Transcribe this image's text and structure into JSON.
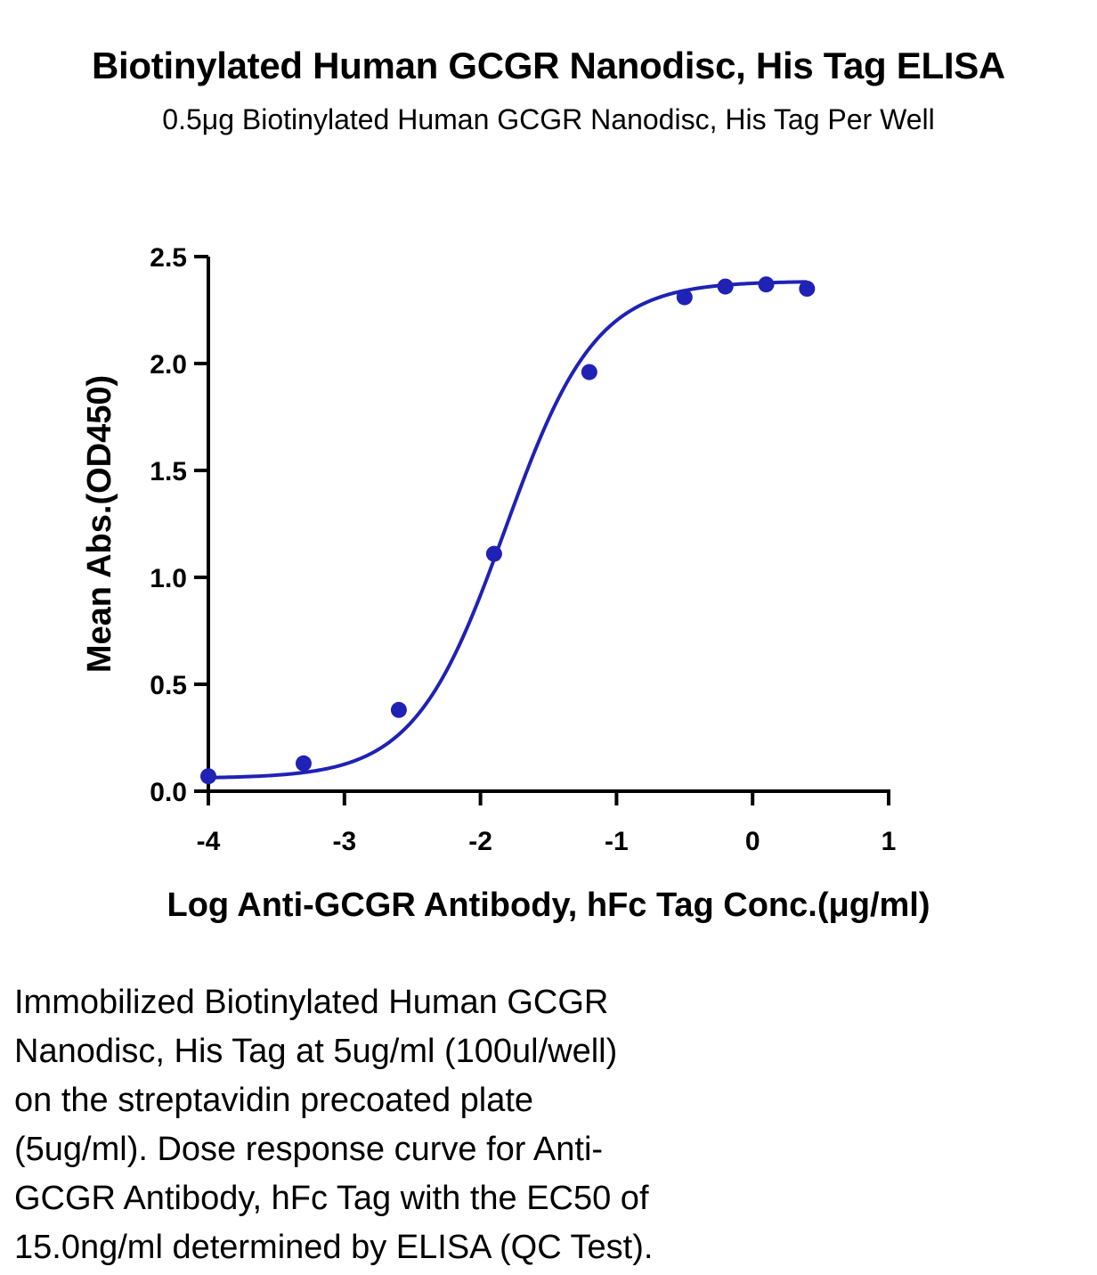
{
  "chart_data": {
    "type": "scatter",
    "title": "Biotinylated Human GCGR Nanodisc, His Tag ELISA",
    "subtitle": "0.5μg Biotinylated Human GCGR Nanodisc, His Tag Per Well",
    "xlabel": "Log Anti-GCGR Antibody, hFc Tag Conc.(μg/ml)",
    "ylabel": "Mean Abs.(OD450)",
    "xlim": [
      -4,
      1
    ],
    "ylim": [
      0,
      2.5
    ],
    "xticks": [
      "-4",
      "-3",
      "-2",
      "-1",
      "0",
      "1"
    ],
    "yticks": [
      "0.0",
      "0.5",
      "1.0",
      "1.5",
      "2.0",
      "2.5"
    ],
    "series": [
      {
        "x": [
          -4.0,
          -3.3,
          -2.6,
          -1.9,
          -1.2,
          -0.5,
          -0.2,
          0.1,
          0.4
        ],
        "y": [
          0.07,
          0.13,
          0.38,
          1.11,
          1.96,
          2.31,
          2.36,
          2.37,
          2.35
        ]
      }
    ],
    "fit": {
      "type": "4PL sigmoid",
      "bottom": 0.06,
      "top": 2.385,
      "log_ec50": -1.82,
      "hill": 1.3
    },
    "color": "#1f22b4",
    "grid": false,
    "legend": "none"
  },
  "caption": {
    "lines": [
      "Immobilized Biotinylated Human GCGR",
      "Nanodisc, His Tag at 5ug/ml (100ul/well)",
      "on the streptavidin precoated plate",
      "(5ug/ml). Dose response curve for Anti-",
      "GCGR Antibody, hFc Tag with the EC50 of",
      "15.0ng/ml determined by ELISA (QC Test)."
    ]
  }
}
